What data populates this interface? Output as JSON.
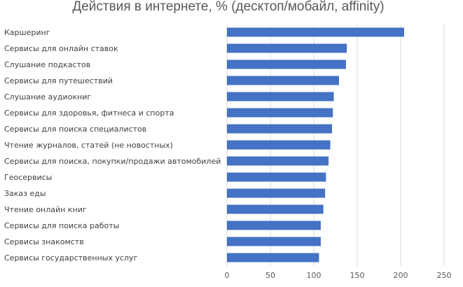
{
  "chart_data": {
    "type": "bar",
    "orientation": "horizontal",
    "title": "Действия в интернете, % (десктоп/мобайл, affinity)",
    "xlabel": "",
    "ylabel": "",
    "categories": [
      "Каршеринг",
      "Сервисы для онлайн ставок",
      "Слушание подкастов",
      "Сервисы для путешествий",
      "Слушание аудиокниг",
      "Сервисы для здоровья, фитнеса и спорта",
      "Сервисы для поиска специалистов",
      "Чтение журналов, статей (не новостных)",
      "Сервисы для поиска, покупки/продажи автомобилей",
      "Геосервисы",
      "Заказ еды",
      "Чтение онлайн книг",
      "Сервисы для поиска работы",
      "Сервисы знакомств",
      "Сервисы государственных услуг"
    ],
    "values": [
      204,
      138,
      137,
      129,
      123,
      122,
      121,
      119,
      117,
      114,
      113,
      111,
      108,
      108,
      106
    ],
    "xlim": [
      0,
      250
    ],
    "ticks": [
      "0",
      "50",
      "100",
      "150",
      "200",
      "250"
    ],
    "grid": true,
    "legend": "none",
    "bar_color": "#4472c4"
  }
}
